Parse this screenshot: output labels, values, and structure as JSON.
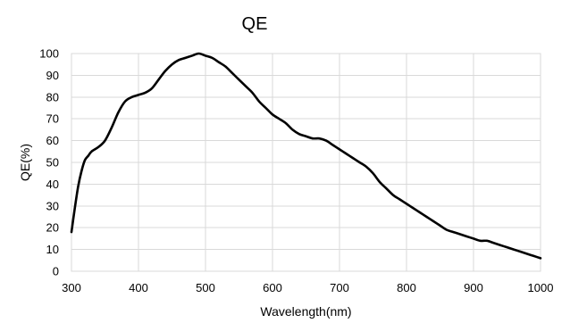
{
  "chart_data": {
    "type": "line",
    "title": "QE",
    "xlabel": "Wavelength(nm)",
    "ylabel": "QE(%)",
    "xlim": [
      300,
      1000
    ],
    "ylim": [
      0,
      100
    ],
    "x_ticks": [
      300,
      400,
      500,
      600,
      700,
      800,
      900,
      1000
    ],
    "y_ticks": [
      0,
      10,
      20,
      30,
      40,
      50,
      60,
      70,
      80,
      90,
      100
    ],
    "grid": true,
    "legend": false,
    "series": [
      {
        "color": "#000000",
        "x": [
          300,
          305,
          310,
          315,
          320,
          325,
          330,
          340,
          350,
          360,
          370,
          380,
          390,
          400,
          410,
          420,
          430,
          440,
          450,
          460,
          470,
          480,
          490,
          500,
          510,
          520,
          530,
          540,
          550,
          560,
          570,
          580,
          590,
          600,
          610,
          620,
          630,
          640,
          650,
          660,
          670,
          680,
          690,
          700,
          710,
          720,
          730,
          740,
          750,
          760,
          770,
          780,
          790,
          800,
          810,
          820,
          830,
          840,
          850,
          860,
          870,
          880,
          890,
          900,
          910,
          920,
          930,
          940,
          950,
          960,
          970,
          980,
          990,
          1000
        ],
        "y": [
          18,
          29,
          39,
          46,
          51,
          53,
          55,
          57,
          60,
          66,
          73,
          78,
          80,
          81,
          82,
          84,
          88,
          92,
          95,
          97,
          98,
          99,
          100,
          99,
          98,
          96,
          94,
          91,
          88,
          85,
          82,
          78,
          75,
          72,
          70,
          68,
          65,
          63,
          62,
          61,
          61,
          60,
          58,
          56,
          54,
          52,
          50,
          48,
          45,
          41,
          38,
          35,
          33,
          31,
          29,
          27,
          25,
          23,
          21,
          19,
          18,
          17,
          16,
          15,
          14,
          14,
          13,
          12,
          11,
          10,
          9,
          8,
          7,
          6
        ]
      }
    ]
  }
}
